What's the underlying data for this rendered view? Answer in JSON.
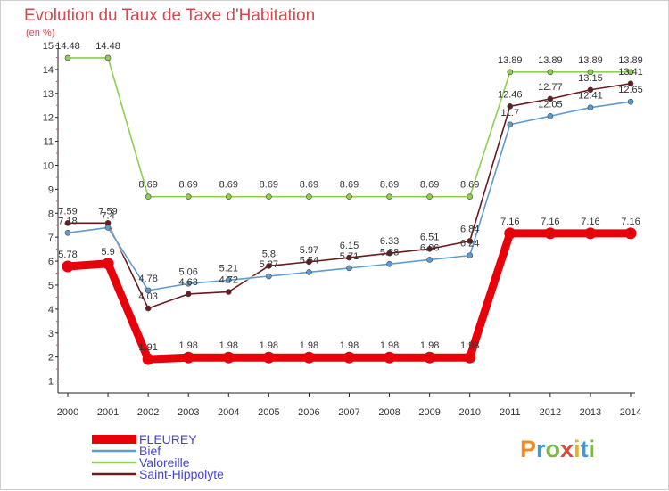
{
  "title": "Evolution du Taux de Taxe d'Habitation",
  "subtitle": "(en %)",
  "logo": {
    "text": "Proxiti",
    "colors": [
      "#f08a24",
      "#3f9ad8",
      "#7ab648",
      "#d84a3a",
      "#e6b422",
      "#3f9ad8",
      "#7ab648"
    ]
  },
  "chart_data": {
    "type": "line",
    "title": "Evolution du Taux de Taxe d'Habitation",
    "ylabel": "(en %)",
    "xlabel": "",
    "x": [
      "2000",
      "2001",
      "2002",
      "2003",
      "2004",
      "2005",
      "2006",
      "2007",
      "2008",
      "2009",
      "2010",
      "2011",
      "2012",
      "2013",
      "2014"
    ],
    "ylim": [
      0.5,
      15
    ],
    "yticks": [
      1,
      2,
      3,
      4,
      5,
      6,
      7,
      8,
      9,
      10,
      11,
      12,
      13,
      14,
      15
    ],
    "grid": false,
    "legend_position": "bottom-left",
    "series": [
      {
        "name": "FLEUREY",
        "color": "#e8000b",
        "width": "thick",
        "values": [
          5.78,
          5.9,
          1.91,
          1.98,
          1.98,
          1.98,
          1.98,
          1.98,
          1.98,
          1.98,
          1.98,
          7.16,
          7.16,
          7.16,
          7.16
        ]
      },
      {
        "name": "Bief",
        "color": "#5e9bd0",
        "width": "thin",
        "values": [
          7.18,
          7.4,
          4.78,
          5.06,
          5.21,
          5.37,
          5.54,
          5.71,
          5.88,
          6.06,
          6.24,
          11.7,
          12.05,
          12.41,
          12.65
        ]
      },
      {
        "name": "Valoreille",
        "color": "#8cd050",
        "width": "thin",
        "values": [
          14.48,
          14.48,
          8.69,
          8.69,
          8.69,
          8.69,
          8.69,
          8.69,
          8.69,
          8.69,
          8.69,
          13.89,
          13.89,
          13.89,
          13.89
        ]
      },
      {
        "name": "Saint-Hippolyte",
        "color": "#6b1a1e",
        "width": "thin",
        "values": [
          7.59,
          7.59,
          4.03,
          4.63,
          4.72,
          5.8,
          5.97,
          6.15,
          6.33,
          6.51,
          6.84,
          12.46,
          12.77,
          13.15,
          13.41
        ]
      }
    ]
  }
}
